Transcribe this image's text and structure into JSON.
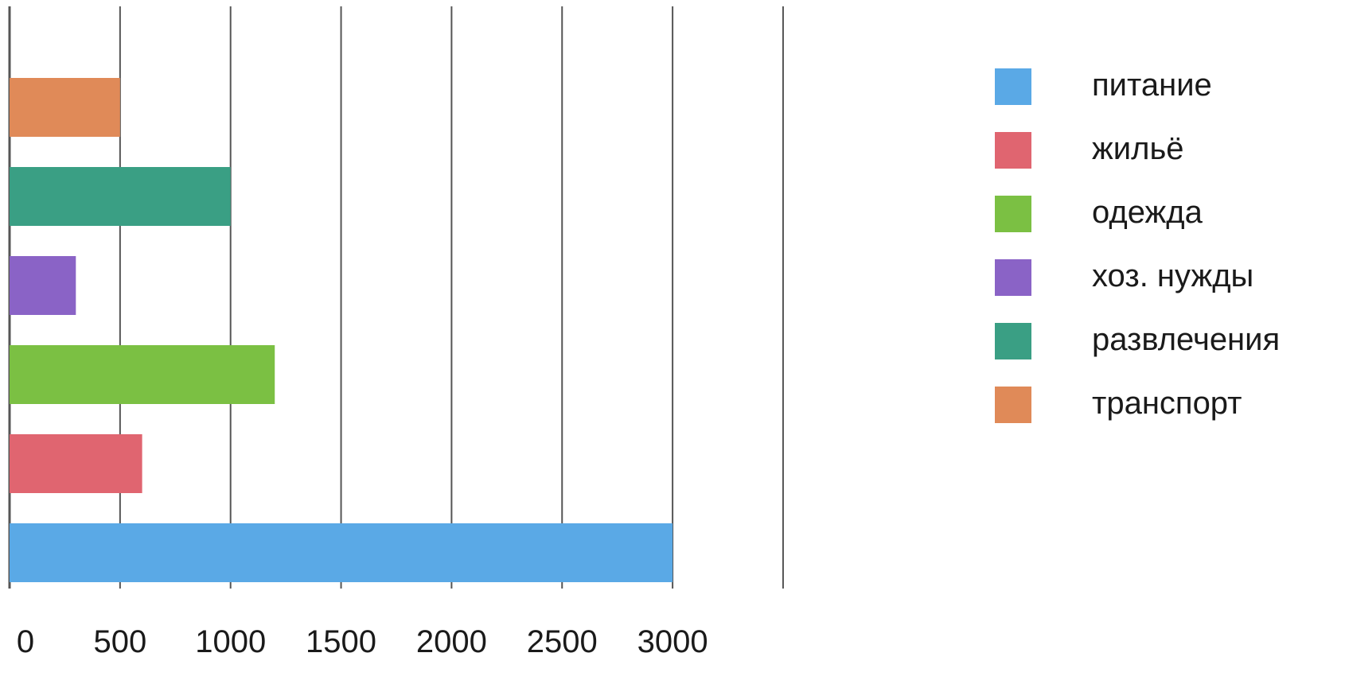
{
  "chart_data": {
    "type": "bar",
    "orientation": "horizontal",
    "title": "",
    "xlabel": "",
    "ylabel": "",
    "xlim": [
      0,
      3500
    ],
    "x_ticks": [
      0,
      500,
      1000,
      1500,
      2000,
      2500,
      3000
    ],
    "x_tick_labels": [
      "0",
      "500",
      "1000",
      "1500",
      "2000",
      "2500",
      "3000"
    ],
    "grid": "vertical",
    "legend_position": "right",
    "categories": [
      "питание",
      "жильё",
      "одежда",
      "хоз. нужды",
      "развлечения",
      "транспорт"
    ],
    "values": [
      3000,
      600,
      1200,
      300,
      1000,
      500
    ],
    "colors": [
      "#5aa9e6",
      "#e06570",
      "#7bc043",
      "#8a63c6",
      "#3a9f84",
      "#e08a58"
    ]
  }
}
